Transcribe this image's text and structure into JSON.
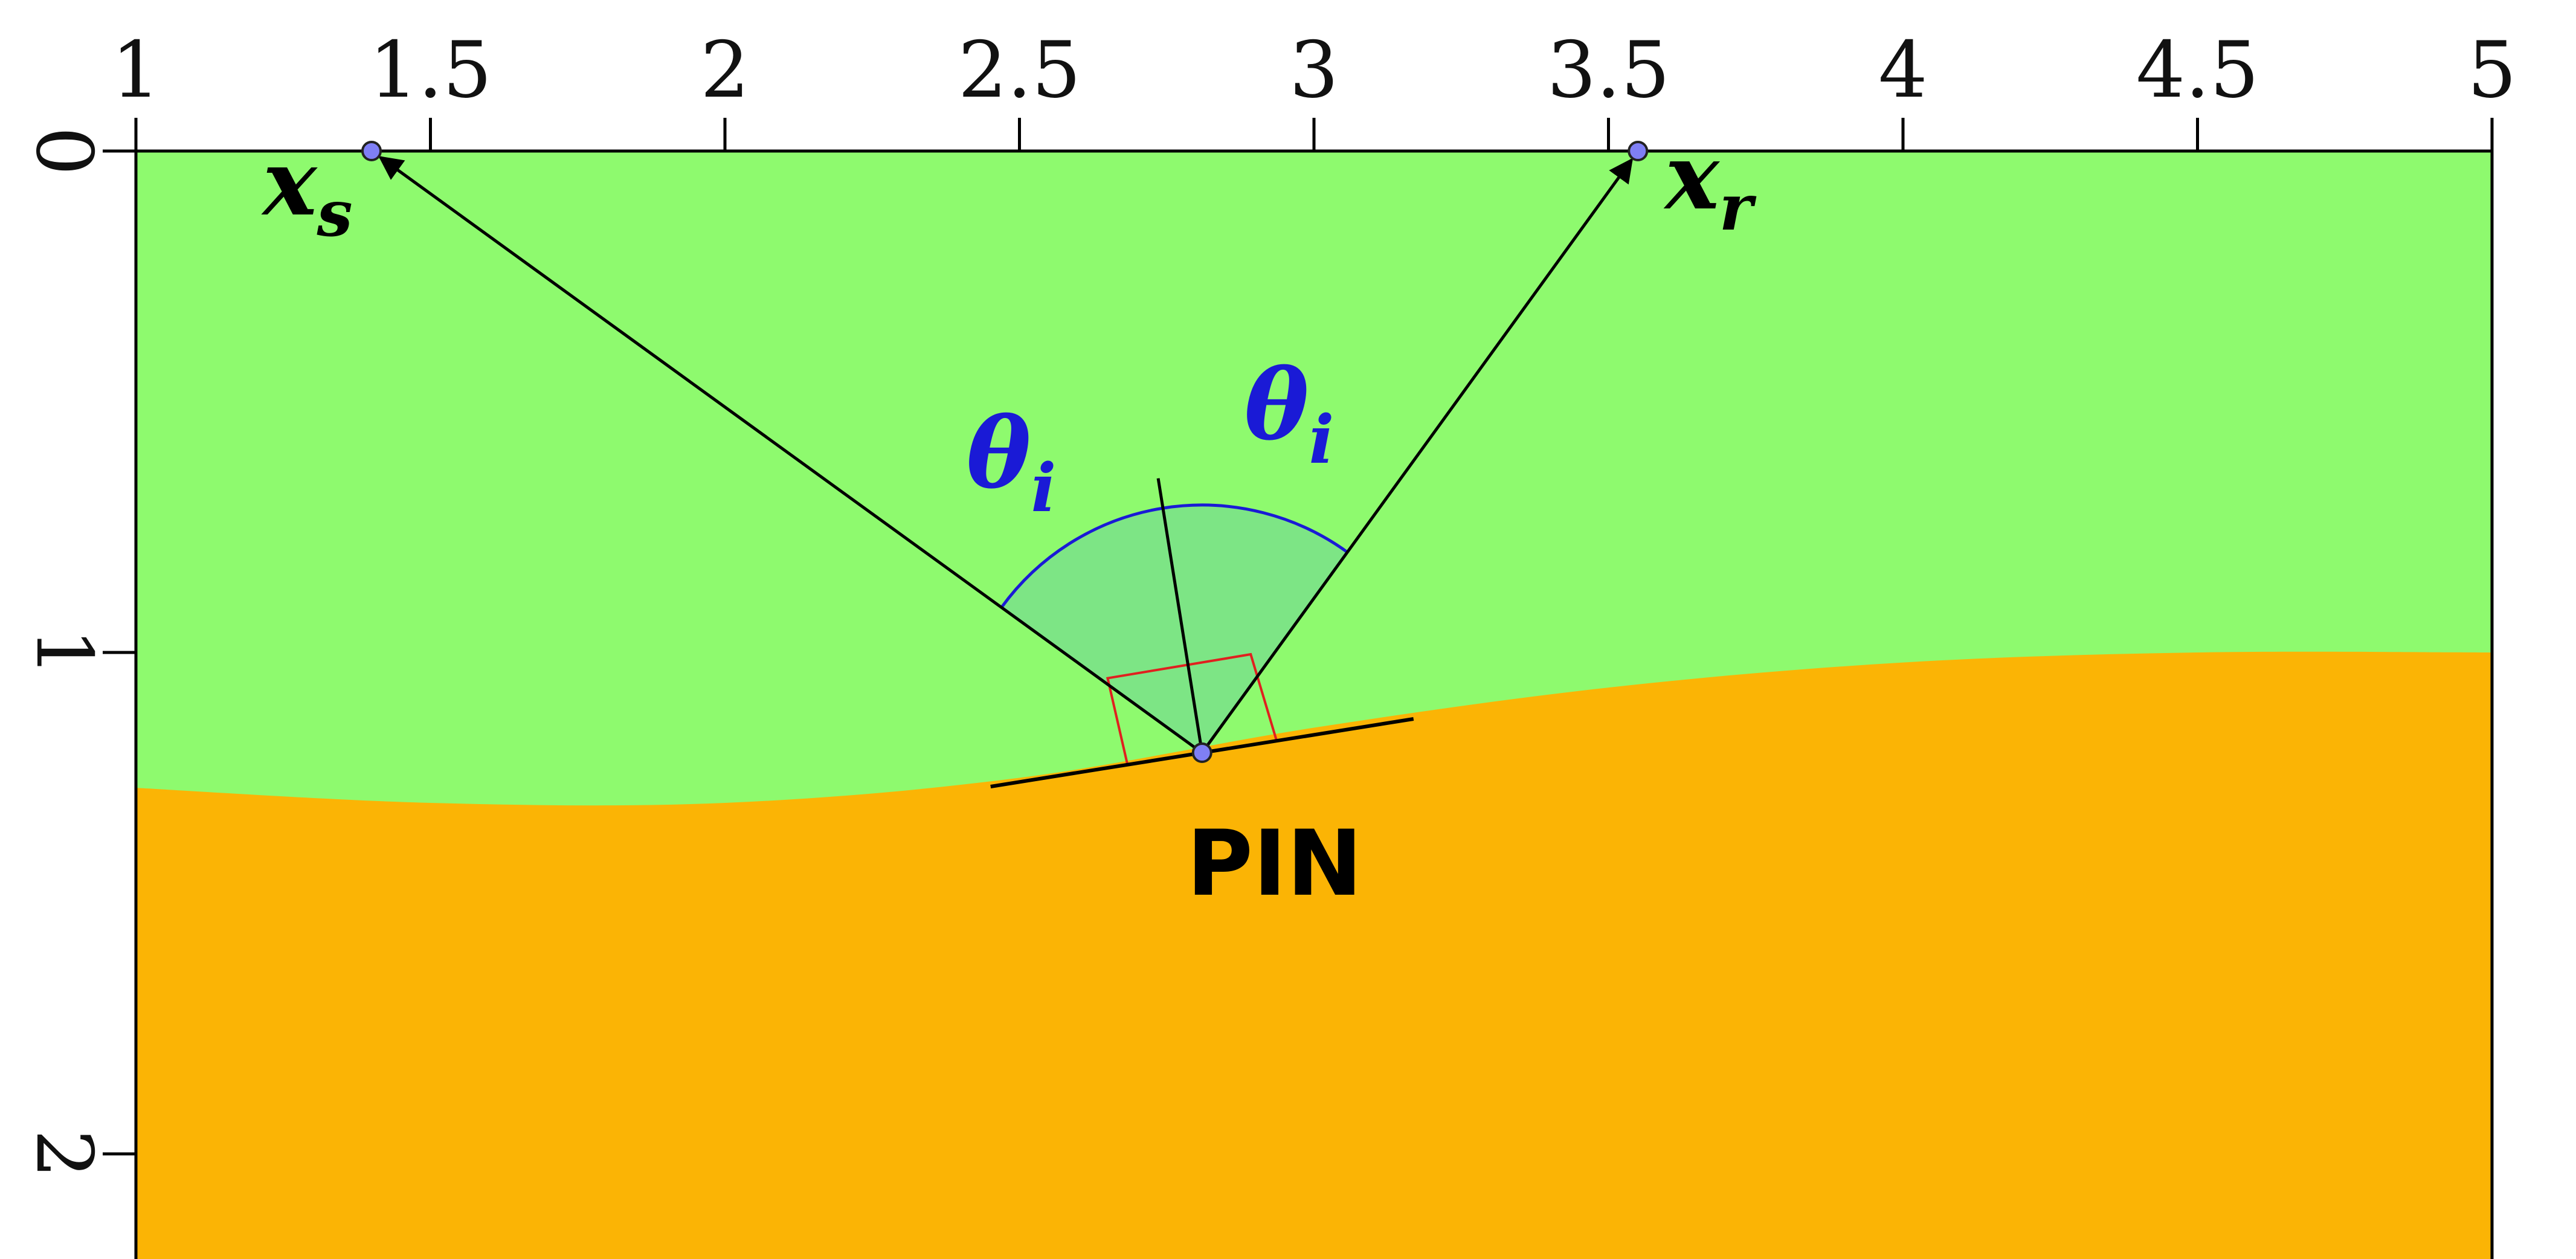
{
  "axes": {
    "x_ticks": [
      1,
      1.5,
      2,
      2.5,
      3,
      3.5,
      4,
      4.5,
      5
    ],
    "x_tick_labels": [
      "1",
      "1.5",
      "2",
      "2.5",
      "3",
      "3.5",
      "4",
      "4.5",
      "5"
    ],
    "y_ticks": [
      0,
      1,
      2
    ],
    "y_tick_labels": [
      "0",
      "1",
      "2"
    ],
    "x_range": [
      1,
      5
    ],
    "y_range": [
      0,
      2.25
    ],
    "y_inverted": true
  },
  "layers": {
    "upper_color": "#8efa6e",
    "lower_color": "#fbb405",
    "interface_depths": [
      [
        1,
        1.27
      ],
      [
        1.5,
        1.3
      ],
      [
        2,
        1.3
      ],
      [
        2.5,
        1.25
      ],
      [
        3,
        1.15
      ],
      [
        3.5,
        1.07
      ],
      [
        4,
        1.02
      ],
      [
        4.5,
        1.0
      ],
      [
        5,
        1.0
      ]
    ]
  },
  "points": {
    "source": {
      "x": 1.4,
      "z": 0.0,
      "label": "x",
      "subscript": "s"
    },
    "receiver": {
      "x": 3.55,
      "z": 0.0,
      "label": "x",
      "subscript": "r"
    },
    "pin": {
      "x": 2.81,
      "z": 1.2,
      "label": "PIN"
    }
  },
  "angle": {
    "symbol": "θ",
    "subscript": "i",
    "color": "#1a1ad6",
    "fill_color": "#7ae08a"
  },
  "colors": {
    "point_fill": "#7f7ff5",
    "rays": "#000000",
    "ruler": "#e0201f"
  }
}
